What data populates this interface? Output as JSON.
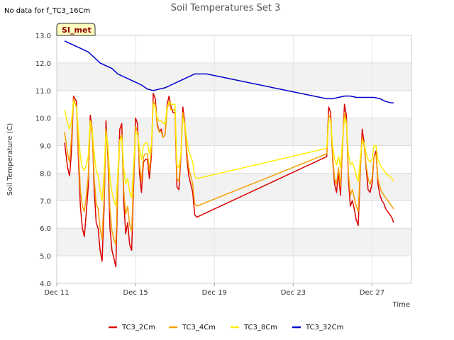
{
  "page_header": {
    "no_data_note": "No data for f_TC3_16Cm"
  },
  "chart_data": {
    "type": "line",
    "title": "Soil Temperatures Set 3",
    "xlabel": "Time",
    "ylabel": "Soil Temperature (C)",
    "ylim": [
      4.0,
      13.0
    ],
    "xlim": [
      0,
      18
    ],
    "y_ticks": [
      "4.0",
      "5.0",
      "6.0",
      "7.0",
      "8.0",
      "9.0",
      "10.0",
      "11.0",
      "12.0",
      "13.0"
    ],
    "x_ticks": [
      {
        "x": 0,
        "label": "Dec 11"
      },
      {
        "x": 4,
        "label": "Dec 15"
      },
      {
        "x": 8,
        "label": "Dec 19"
      },
      {
        "x": 12,
        "label": "Dec 23"
      },
      {
        "x": 16,
        "label": "Dec 27"
      }
    ],
    "badge": "SI_met",
    "grid": true,
    "legend_position": "bottom",
    "series": [
      {
        "name": "TC3_2Cm",
        "color": "#dd0000",
        "x": [
          0.4,
          0.55,
          0.65,
          0.75,
          0.85,
          1.0,
          1.1,
          1.2,
          1.3,
          1.4,
          1.5,
          1.6,
          1.7,
          1.8,
          1.9,
          2.0,
          2.1,
          2.2,
          2.3,
          2.4,
          2.5,
          2.6,
          2.7,
          2.8,
          2.9,
          3.0,
          3.1,
          3.2,
          3.3,
          3.4,
          3.5,
          3.6,
          3.7,
          3.8,
          3.9,
          4.0,
          4.1,
          4.2,
          4.3,
          4.4,
          4.5,
          4.6,
          4.7,
          4.8,
          4.9,
          5.0,
          5.1,
          5.2,
          5.3,
          5.4,
          5.5,
          5.6,
          5.7,
          5.8,
          5.9,
          6.0,
          6.1,
          6.2,
          6.3,
          6.4,
          6.5,
          6.6,
          6.7,
          6.9,
          7.0,
          7.1,
          13.7,
          13.8,
          13.9,
          14.0,
          14.1,
          14.2,
          14.3,
          14.4,
          14.5,
          14.6,
          14.7,
          14.8,
          14.9,
          15.0,
          15.1,
          15.2,
          15.3,
          15.4,
          15.5,
          15.6,
          15.7,
          15.8,
          15.9,
          16.0,
          16.1,
          16.2,
          16.3,
          16.4,
          16.5,
          16.6,
          16.7,
          16.8,
          16.9,
          17.0,
          17.1
        ],
        "values": [
          9.1,
          8.2,
          7.9,
          8.8,
          10.8,
          10.6,
          8.5,
          6.8,
          6.0,
          5.7,
          6.6,
          7.5,
          10.1,
          9.6,
          7.4,
          6.2,
          6.0,
          5.2,
          4.8,
          6.7,
          9.9,
          8.5,
          6.0,
          5.2,
          4.9,
          4.6,
          7.5,
          9.6,
          9.8,
          7.0,
          5.8,
          6.2,
          5.4,
          5.2,
          7.5,
          10.0,
          9.8,
          8.0,
          7.3,
          8.4,
          8.5,
          8.5,
          7.8,
          8.6,
          10.9,
          10.7,
          9.8,
          9.5,
          9.6,
          9.3,
          9.4,
          10.5,
          10.8,
          10.4,
          10.2,
          10.2,
          7.5,
          7.4,
          8.6,
          10.4,
          9.8,
          8.6,
          7.9,
          7.3,
          6.5,
          6.4,
          8.6,
          10.4,
          10.2,
          8.5,
          7.6,
          7.3,
          8.0,
          7.2,
          9.0,
          10.5,
          10.1,
          7.8,
          6.8,
          7.0,
          6.7,
          6.3,
          6.1,
          8.0,
          9.6,
          9.1,
          8.2,
          7.4,
          7.3,
          7.6,
          8.6,
          8.8,
          7.6,
          7.2,
          7.0,
          6.9,
          6.7,
          6.6,
          6.5,
          6.4,
          6.2
        ]
      },
      {
        "name": "TC3_4Cm",
        "color": "#f5a000",
        "x": [
          0.4,
          0.55,
          0.65,
          0.75,
          0.85,
          1.0,
          1.1,
          1.2,
          1.3,
          1.4,
          1.5,
          1.6,
          1.7,
          1.8,
          1.9,
          2.0,
          2.1,
          2.2,
          2.3,
          2.4,
          2.5,
          2.6,
          2.7,
          2.8,
          2.9,
          3.0,
          3.1,
          3.2,
          3.3,
          3.4,
          3.5,
          3.6,
          3.7,
          3.8,
          3.9,
          4.0,
          4.1,
          4.2,
          4.3,
          4.4,
          4.5,
          4.6,
          4.7,
          4.8,
          4.9,
          5.0,
          5.1,
          5.2,
          5.3,
          5.4,
          5.5,
          5.6,
          5.7,
          5.8,
          5.9,
          6.0,
          6.1,
          6.2,
          6.3,
          6.4,
          6.5,
          6.6,
          6.7,
          6.9,
          7.0,
          7.1,
          13.7,
          13.8,
          13.9,
          14.0,
          14.1,
          14.2,
          14.3,
          14.4,
          14.5,
          14.6,
          14.7,
          14.8,
          14.9,
          15.0,
          15.1,
          15.2,
          15.3,
          15.4,
          15.5,
          15.6,
          15.7,
          15.8,
          15.9,
          16.0,
          16.1,
          16.2,
          16.3,
          16.4,
          16.5,
          16.6,
          16.7,
          16.8,
          16.9,
          17.0,
          17.1
        ],
        "values": [
          9.5,
          8.7,
          8.4,
          9.3,
          10.7,
          10.4,
          8.8,
          7.4,
          6.8,
          6.6,
          7.2,
          7.9,
          9.8,
          9.4,
          7.8,
          6.9,
          6.7,
          6.0,
          5.6,
          7.1,
          9.6,
          8.7,
          6.7,
          5.9,
          5.6,
          5.4,
          7.6,
          9.2,
          9.4,
          7.4,
          6.5,
          6.8,
          6.1,
          5.9,
          7.8,
          9.7,
          9.5,
          8.3,
          7.7,
          8.6,
          8.7,
          8.7,
          8.1,
          8.8,
          10.6,
          10.5,
          9.7,
          9.5,
          9.5,
          9.3,
          9.4,
          10.3,
          10.6,
          10.3,
          10.3,
          10.3,
          7.8,
          7.7,
          8.7,
          10.2,
          9.7,
          8.8,
          8.2,
          7.6,
          6.9,
          6.8,
          8.7,
          10.1,
          10.0,
          8.6,
          7.8,
          7.6,
          8.2,
          7.5,
          9.0,
          10.2,
          9.9,
          8.0,
          7.2,
          7.4,
          7.1,
          6.8,
          6.6,
          8.1,
          9.3,
          9.0,
          8.3,
          7.8,
          7.6,
          7.8,
          8.6,
          8.7,
          7.8,
          7.5,
          7.3,
          7.2,
          7.1,
          7.0,
          6.9,
          6.8,
          6.7
        ]
      },
      {
        "name": "TC3_8Cm",
        "color": "#ffee00",
        "x": [
          0.4,
          0.55,
          0.65,
          0.75,
          0.85,
          1.0,
          1.1,
          1.2,
          1.3,
          1.4,
          1.5,
          1.6,
          1.7,
          1.8,
          1.9,
          2.0,
          2.1,
          2.2,
          2.3,
          2.4,
          2.5,
          2.6,
          2.7,
          2.8,
          2.9,
          3.0,
          3.1,
          3.2,
          3.3,
          3.4,
          3.5,
          3.6,
          3.7,
          3.8,
          3.9,
          4.0,
          4.1,
          4.2,
          4.3,
          4.4,
          4.5,
          4.6,
          4.7,
          4.8,
          4.9,
          5.0,
          5.1,
          5.2,
          5.3,
          5.4,
          5.5,
          5.6,
          5.7,
          5.8,
          5.9,
          6.0,
          6.1,
          6.2,
          6.3,
          6.4,
          6.5,
          6.6,
          6.7,
          6.9,
          7.0,
          7.1,
          13.7,
          13.8,
          13.9,
          14.0,
          14.1,
          14.2,
          14.3,
          14.4,
          14.5,
          14.6,
          14.7,
          14.8,
          14.9,
          15.0,
          15.1,
          15.2,
          15.3,
          15.4,
          15.5,
          15.6,
          15.7,
          15.8,
          15.9,
          16.0,
          16.1,
          16.2,
          16.3,
          16.4,
          16.5,
          16.6,
          16.7,
          16.8,
          16.9,
          17.0,
          17.1
        ],
        "values": [
          10.3,
          9.8,
          9.6,
          9.9,
          10.6,
          10.4,
          9.5,
          8.6,
          8.2,
          8.1,
          8.3,
          8.6,
          9.9,
          9.6,
          8.7,
          8.1,
          7.9,
          7.4,
          7.0,
          8.0,
          9.5,
          9.0,
          7.8,
          7.3,
          7.0,
          6.8,
          8.0,
          9.2,
          9.3,
          8.2,
          7.6,
          7.8,
          7.3,
          7.1,
          8.3,
          9.5,
          9.4,
          8.9,
          8.5,
          9.0,
          9.1,
          9.1,
          8.7,
          9.0,
          10.5,
          10.4,
          10.0,
          9.9,
          9.9,
          9.8,
          9.8,
          10.4,
          10.6,
          10.5,
          10.5,
          10.5,
          8.3,
          8.2,
          8.7,
          10.0,
          9.8,
          9.2,
          8.8,
          8.4,
          7.9,
          7.8,
          8.9,
          9.9,
          9.9,
          9.0,
          8.5,
          8.3,
          8.6,
          8.2,
          9.2,
          10.0,
          9.8,
          8.7,
          8.3,
          8.4,
          8.2,
          7.9,
          7.7,
          8.5,
          9.2,
          9.1,
          8.7,
          8.5,
          8.4,
          8.5,
          9.0,
          9.0,
          8.5,
          8.3,
          8.2,
          8.1,
          8.0,
          7.9,
          7.9,
          7.8,
          7.7
        ]
      },
      {
        "name": "TC3_32Cm",
        "color": "#0000cc",
        "x": [
          0.4,
          0.7,
          1.0,
          1.3,
          1.6,
          1.9,
          2.2,
          2.5,
          2.8,
          3.1,
          3.4,
          3.7,
          4.0,
          4.3,
          4.6,
          4.9,
          5.2,
          5.5,
          5.8,
          6.1,
          6.4,
          6.7,
          7.0,
          7.3,
          7.6,
          13.7,
          14.0,
          14.3,
          14.6,
          14.9,
          15.2,
          15.5,
          15.8,
          16.1,
          16.4,
          16.7,
          17.0,
          17.1
        ],
        "values": [
          12.8,
          12.7,
          12.6,
          12.5,
          12.4,
          12.2,
          12.0,
          11.9,
          11.8,
          11.6,
          11.5,
          11.4,
          11.3,
          11.2,
          11.05,
          11.0,
          11.05,
          11.1,
          11.2,
          11.3,
          11.4,
          11.5,
          11.6,
          11.6,
          11.6,
          10.7,
          10.7,
          10.75,
          10.8,
          10.8,
          10.75,
          10.75,
          10.75,
          10.75,
          10.7,
          10.6,
          10.55,
          10.55
        ]
      }
    ]
  }
}
